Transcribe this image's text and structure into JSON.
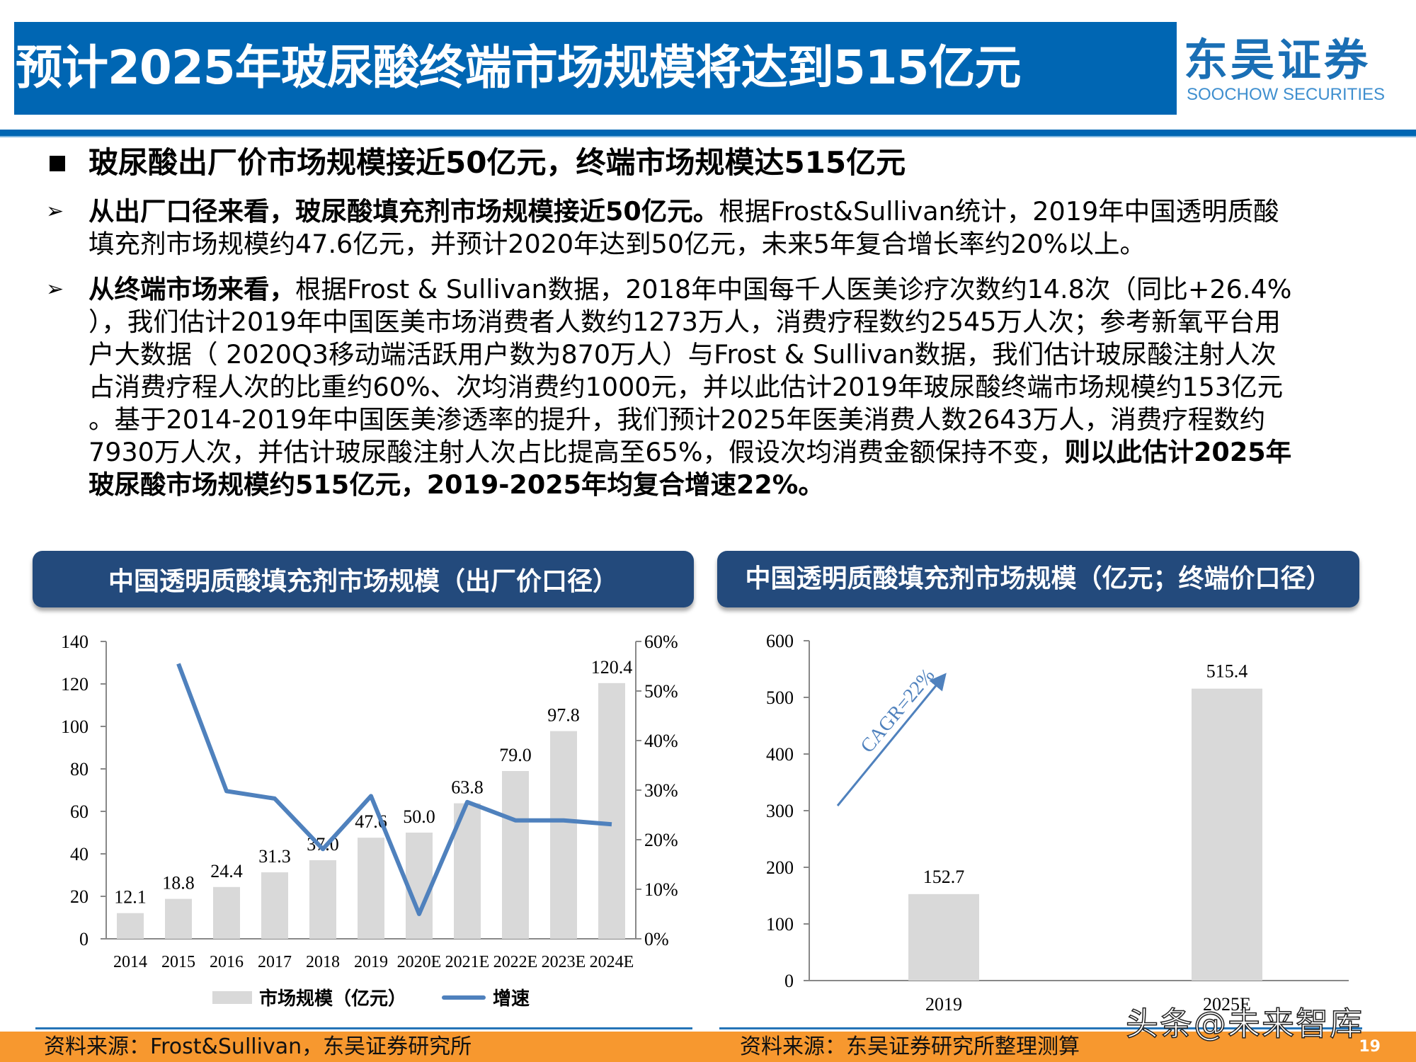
{
  "header": {
    "title": "预计2025年玻尿酸终端市场规模将达到515亿元",
    "logo_cn": "东吴证券",
    "logo_en": "SOOCHOW SECURITIES",
    "colors": {
      "title_bg": "#0066b3",
      "chart_title_bg": "#234a7c",
      "footer_bg": "#f7982f",
      "line_series": "#4f81bd",
      "bar_fill": "#d9d9d9"
    }
  },
  "body": {
    "heading": "玻尿酸出厂价市场规模接近50亿元，终端市场规模达515亿元",
    "bullet1": {
      "bold": "从出厂口径来看，玻尿酸填充剂市场规模接近50亿元。",
      "line1_rest": "根据Frost&Sullivan统计，2019年中国透明质酸",
      "line2": "填充剂市场规模约47.6亿元，并预计2020年达到50亿元，未来5年复合增长率约20%以上。"
    },
    "bullet2": {
      "bold_lead": "从终端市场来看，",
      "line1_rest": "根据Frost & Sullivan数据，2018年中国每千人医美诊疗次数约14.8次（同比+26.4%",
      "line2": "），我们估计2019年中国医美市场消费者人数约1273万人，消费疗程数约2545万人次；参考新氧平台用",
      "line3": "户大数据（ 2020Q3移动端活跃用户数为870万人）与Frost & Sullivan数据，我们估计玻尿酸注射人次",
      "line4": "占消费疗程人次的比重约60%、次均消费约1000元，并以此估计2019年玻尿酸终端市场规模约153亿元",
      "line5": "。基于2014-2019年中国医美渗透率的提升，我们预计2025年医美消费人数2643万人，消费疗程数约",
      "line6_normal": "7930万人次，并估计玻尿酸注射人次占比提高至65%，假设次均消费金额保持不变，",
      "line6_bold": "则以此估计2025年",
      "line7_bold": "玻尿酸市场规模约515亿元，2019-2025年均复合增速22%。"
    }
  },
  "chart_left": {
    "title": "中国透明质酸填充剂市场规模（出厂价口径）",
    "legend": {
      "bar": "市场规模（亿元）",
      "line": "增速"
    },
    "source": "资料来源：Frost&Sullivan，东吴证券研究所",
    "left_ticks": [
      "0",
      "20",
      "40",
      "60",
      "80",
      "100",
      "120",
      "140"
    ],
    "right_ticks": [
      "0%",
      "10%",
      "20%",
      "30%",
      "40%",
      "50%",
      "60%"
    ]
  },
  "chart_right": {
    "title": "中国透明质酸填充剂市场规模（亿元；终端价口径）",
    "annotation": "CAGR=22%",
    "source": "资料来源：东吴证券研究所整理测算",
    "ticks": [
      "0",
      "100",
      "200",
      "300",
      "400",
      "500",
      "600"
    ]
  },
  "footer": {
    "page_number": "19",
    "watermark": "头条@未来智库"
  },
  "chart_data": [
    {
      "type": "bar",
      "title": "中国透明质酸填充剂市场规模（出厂价口径）",
      "categories": [
        "2014",
        "2015",
        "2016",
        "2017",
        "2018",
        "2019",
        "2020E",
        "2021E",
        "2022E",
        "2023E",
        "2024E"
      ],
      "series": [
        {
          "name": "市场规模（亿元）",
          "type": "bar",
          "axis": "left",
          "values": [
            12.1,
            18.8,
            24.4,
            31.3,
            37.0,
            47.6,
            50.0,
            63.8,
            79.0,
            97.8,
            120.4
          ]
        },
        {
          "name": "增速",
          "type": "line",
          "axis": "right",
          "values": [
            null,
            0.555,
            0.298,
            0.283,
            0.181,
            0.288,
            0.05,
            0.276,
            0.239,
            0.239,
            0.231
          ]
        }
      ],
      "xlabel": "",
      "ylabel": "",
      "ylim": [
        0,
        140
      ],
      "y2lim": [
        0,
        0.6
      ],
      "legend_position": "bottom",
      "grid": false
    },
    {
      "type": "bar",
      "title": "中国透明质酸填充剂市场规模（亿元；终端价口径）",
      "categories": [
        "2019",
        "2025E"
      ],
      "values": [
        152.7,
        515.4
      ],
      "annotations": [
        "CAGR=22%"
      ],
      "xlabel": "",
      "ylabel": "",
      "ylim": [
        0,
        600
      ],
      "grid": false
    }
  ]
}
